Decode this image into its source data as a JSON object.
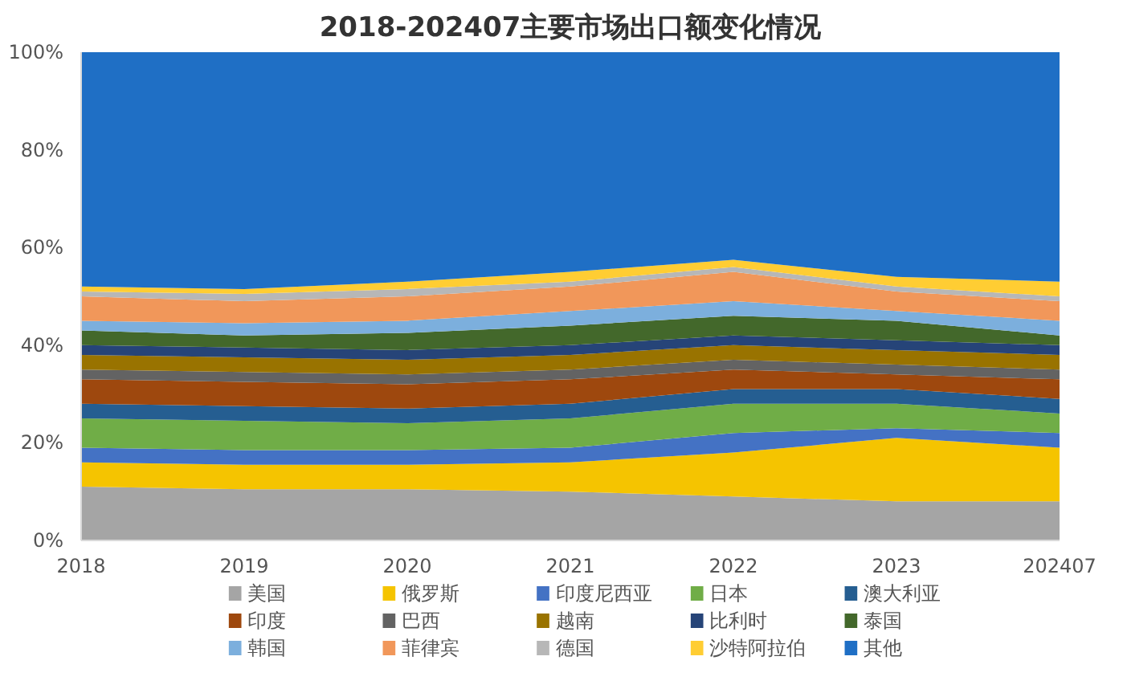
{
  "chart_data": {
    "type": "area",
    "stacked": true,
    "title": "2018-202407主要市场出口额变化情况",
    "categories": [
      "2018",
      "2019",
      "2020",
      "2021",
      "2022",
      "2023",
      "202407"
    ],
    "ylim": [
      0,
      100
    ],
    "yticks": [
      {
        "value": 0,
        "label": "0%"
      },
      {
        "value": 20,
        "label": "20%"
      },
      {
        "value": 40,
        "label": "40%"
      },
      {
        "value": 60,
        "label": "60%"
      },
      {
        "value": 80,
        "label": "80%"
      },
      {
        "value": 100,
        "label": "100%"
      }
    ],
    "grid": false,
    "legend": "bottom",
    "series": [
      {
        "name": "美国",
        "color": "#a5a5a5",
        "values": [
          11,
          10.5,
          10.5,
          10,
          9,
          8,
          8
        ]
      },
      {
        "name": "俄罗斯",
        "color": "#f5c400",
        "values": [
          5,
          5,
          5,
          6,
          9,
          13,
          11
        ]
      },
      {
        "name": "印度尼西亚",
        "color": "#4472c4",
        "values": [
          3,
          3,
          3,
          3,
          4,
          2,
          3
        ]
      },
      {
        "name": "日本",
        "color": "#70ad47",
        "values": [
          6,
          6,
          5.5,
          6,
          6,
          5,
          4
        ]
      },
      {
        "name": "澳大利亚",
        "color": "#255e91",
        "values": [
          3,
          3,
          3,
          3,
          3,
          3,
          3
        ]
      },
      {
        "name": "印度",
        "color": "#9e480e",
        "values": [
          5,
          5,
          5,
          5,
          4,
          3,
          4
        ]
      },
      {
        "name": "巴西",
        "color": "#636363",
        "values": [
          2,
          2,
          2,
          2,
          2,
          2,
          2
        ]
      },
      {
        "name": "越南",
        "color": "#997300",
        "values": [
          3,
          3,
          3,
          3,
          3,
          3,
          3
        ]
      },
      {
        "name": "比利时",
        "color": "#264478",
        "values": [
          2,
          2,
          2,
          2,
          2,
          2,
          2
        ]
      },
      {
        "name": "泰国",
        "color": "#43682b",
        "values": [
          3,
          2.5,
          3.5,
          4,
          4,
          4,
          2
        ]
      },
      {
        "name": "韩国",
        "color": "#7cafdd",
        "values": [
          2,
          2.5,
          2.5,
          3,
          3,
          2,
          3
        ]
      },
      {
        "name": "菲律宾",
        "color": "#f1975a",
        "values": [
          5,
          4.5,
          5,
          5,
          6,
          4,
          4
        ]
      },
      {
        "name": "德国",
        "color": "#b7b7b7",
        "values": [
          1,
          1.5,
          1.5,
          1,
          1,
          1,
          1
        ]
      },
      {
        "name": "沙特阿拉伯",
        "color": "#ffcd33",
        "values": [
          1,
          1,
          1.5,
          2,
          1.5,
          2,
          3
        ]
      },
      {
        "name": "其他",
        "color": "#1f6fc5",
        "values": [
          48,
          48.5,
          47,
          45,
          42.5,
          46,
          47
        ]
      }
    ]
  }
}
